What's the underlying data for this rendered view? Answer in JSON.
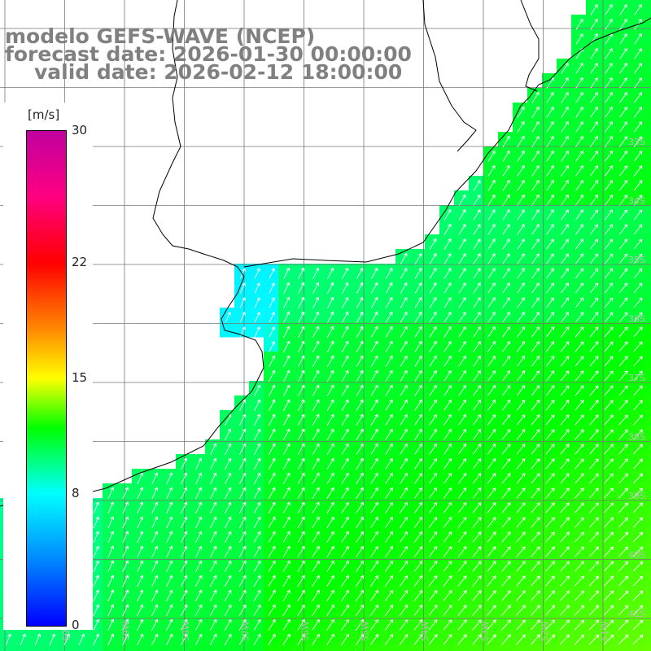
{
  "title": {
    "line1": "modelo GEFS-WAVE (NCEP)",
    "line2": "forecast date: 2026-01-30 00:00:00",
    "line3": "valid date: 2026-02-12 18:00:00"
  },
  "colorbar": {
    "unit": "[m/s]",
    "min": 0,
    "max": 30,
    "tick_labels": [
      "30",
      "22",
      "15",
      "8",
      "0"
    ],
    "tick_values": [
      30,
      22,
      15,
      8,
      0
    ],
    "stops": [
      {
        "v": 0,
        "c": "#0000ff"
      },
      {
        "v": 4,
        "c": "#0088ff"
      },
      {
        "v": 8,
        "c": "#00ffff"
      },
      {
        "v": 12,
        "c": "#00ff00"
      },
      {
        "v": 15,
        "c": "#ffff00"
      },
      {
        "v": 18,
        "c": "#ff8800"
      },
      {
        "v": 22,
        "c": "#ff0000"
      },
      {
        "v": 26,
        "c": "#ff0080"
      },
      {
        "v": 30,
        "c": "#c000a0"
      }
    ]
  },
  "chart_data": {
    "type": "heatmap",
    "variable": "wind speed",
    "unit": "m/s",
    "x_range_lon": [
      -61,
      -50.5
    ],
    "y_range_lat": [
      -31,
      -41.5
    ],
    "grid_step_deg": 1,
    "lon_labels": [
      "60W",
      "59W",
      "58W",
      "57W",
      "56W",
      "55W",
      "54W",
      "53W",
      "52W",
      "51W"
    ],
    "lat_labels": [
      "33S",
      "34S",
      "35S",
      "36S",
      "37S",
      "38S",
      "39S",
      "40S",
      "41S"
    ],
    "arrow_direction": "from south-southwest toward north-northeast"
  }
}
